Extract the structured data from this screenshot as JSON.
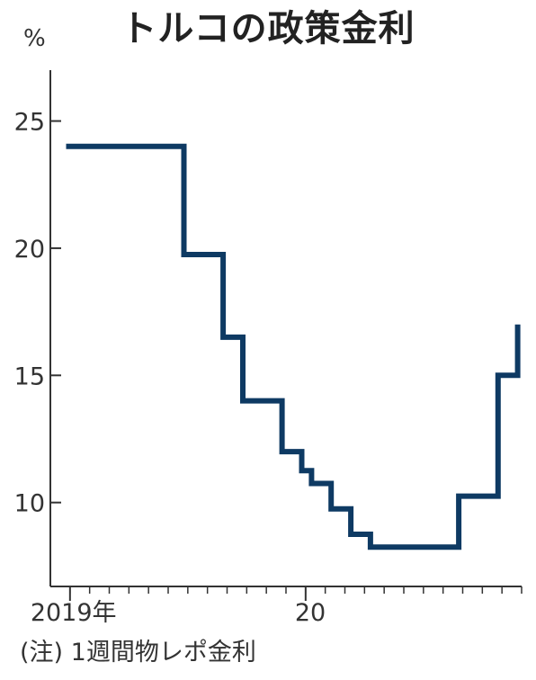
{
  "chart_title": "トルコの政策金利",
  "unit": "%",
  "note": "(注) 1週間物レポ金利",
  "colors": {
    "line": "#0e3a63",
    "axis": "#333333",
    "text": "#222222"
  },
  "chart_data": {
    "type": "line",
    "step": true,
    "title": "トルコの政策金利",
    "ylabel": "%",
    "xlabel": "",
    "ylim": [
      6.7,
      27
    ],
    "xlim": [
      0,
      24
    ],
    "grid": false,
    "legend": "none",
    "yticks": [
      {
        "value": 25,
        "label": "25"
      },
      {
        "value": 20,
        "label": "20"
      },
      {
        "value": 15,
        "label": "15"
      },
      {
        "value": 10,
        "label": "10"
      }
    ],
    "xticks": [
      {
        "value": 1,
        "label": "2019年"
      },
      {
        "value": 13,
        "label": "20"
      }
    ],
    "xminor_ticks": [
      1,
      2,
      3,
      4,
      5,
      6,
      7,
      8,
      9,
      10,
      11,
      12,
      13,
      14,
      15,
      16,
      17,
      18,
      19,
      20,
      21,
      22,
      23,
      24
    ],
    "series": [
      {
        "name": "",
        "x": [
          0.8,
          6.8,
          6.8,
          8.8,
          8.8,
          9.8,
          9.8,
          11.8,
          11.8,
          12.8,
          12.8,
          13.3,
          13.3,
          14.3,
          14.3,
          15.3,
          15.3,
          16.3,
          16.3,
          20.8,
          20.8,
          22.8,
          22.8,
          23.8,
          23.8
        ],
        "y": [
          24,
          24,
          19.75,
          19.75,
          16.5,
          16.5,
          14,
          14,
          12,
          12,
          11.25,
          11.25,
          10.75,
          10.75,
          9.75,
          9.75,
          8.75,
          8.75,
          8.25,
          8.25,
          10.25,
          10.25,
          15,
          15,
          17
        ]
      }
    ]
  }
}
